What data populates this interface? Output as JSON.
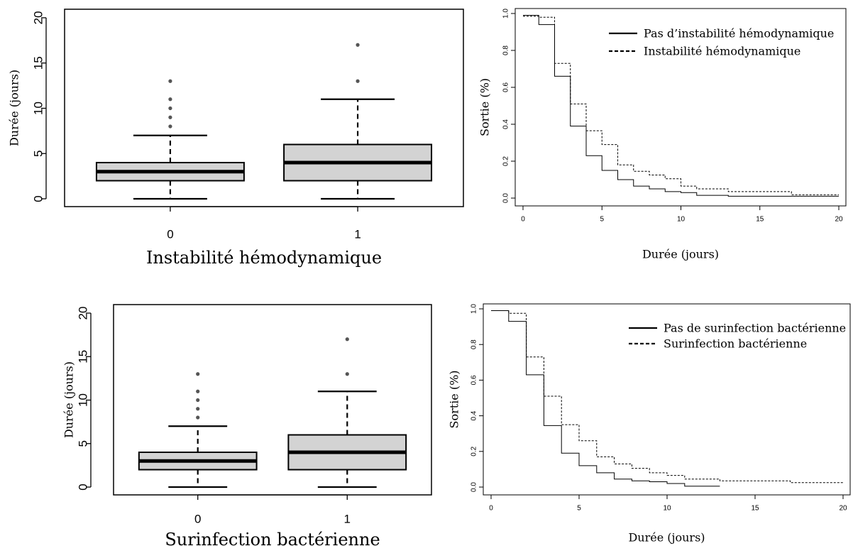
{
  "chart_data": [
    {
      "type": "box",
      "panel": "top-left",
      "xlabel": "Instabilité hémodynamique",
      "ylabel": "Durée (jours)",
      "ylim": [
        0,
        20
      ],
      "yticks": [
        0,
        5,
        10,
        15,
        20
      ],
      "categories": [
        "0",
        "1"
      ],
      "boxes": [
        {
          "category": "0",
          "min": 0,
          "q1": 2,
          "median": 3,
          "q3": 4,
          "max": 7,
          "outliers": [
            8,
            9,
            10,
            11,
            13
          ]
        },
        {
          "category": "1",
          "min": 0,
          "q1": 2,
          "median": 4,
          "q3": 6,
          "max": 11,
          "outliers": [
            13,
            17
          ]
        }
      ]
    },
    {
      "type": "line",
      "step": true,
      "panel": "top-right",
      "xlabel": "Durée (jours)",
      "ylabel": "Sortie (%)",
      "xlim": [
        0,
        20
      ],
      "ylim": [
        0,
        1
      ],
      "xticks": [
        0,
        5,
        10,
        15,
        20
      ],
      "yticks": [
        "0.0",
        "0.2",
        "0.4",
        "0.6",
        "0.8",
        "1.0"
      ],
      "legend_position": "top-right",
      "series": [
        {
          "name": "Pas d’instabilité hémodynamique",
          "style": "solid",
          "x": [
            0,
            1,
            2,
            3,
            4,
            5,
            6,
            7,
            8,
            9,
            10,
            11,
            13,
            20
          ],
          "y": [
            0.99,
            0.94,
            0.66,
            0.39,
            0.23,
            0.15,
            0.1,
            0.065,
            0.05,
            0.035,
            0.03,
            0.015,
            0.01,
            0.01
          ]
        },
        {
          "name": "Instabilité hémodynamique",
          "style": "dashed",
          "x": [
            0,
            1,
            2,
            3,
            4,
            5,
            6,
            7,
            8,
            9,
            10,
            11,
            13,
            17,
            20
          ],
          "y": [
            0.985,
            0.98,
            0.73,
            0.51,
            0.365,
            0.29,
            0.18,
            0.145,
            0.125,
            0.105,
            0.065,
            0.05,
            0.035,
            0.018,
            0.018
          ]
        }
      ]
    },
    {
      "type": "box",
      "panel": "bottom-left",
      "xlabel": "Surinfection bactérienne",
      "ylabel": "Durée (jours)",
      "ylim": [
        0,
        20
      ],
      "yticks": [
        0,
        5,
        10,
        15,
        20
      ],
      "categories": [
        "0",
        "1"
      ],
      "boxes": [
        {
          "category": "0",
          "min": 0,
          "q1": 2,
          "median": 3,
          "q3": 4,
          "max": 7,
          "outliers": [
            8,
            9,
            10,
            11,
            13
          ]
        },
        {
          "category": "1",
          "min": 0,
          "q1": 2,
          "median": 4,
          "q3": 6,
          "max": 11,
          "outliers": [
            13,
            17
          ]
        }
      ]
    },
    {
      "type": "line",
      "step": true,
      "panel": "bottom-right",
      "xlabel": "Durée (jours)",
      "ylabel": "Sortie (%)",
      "xlim": [
        0,
        20
      ],
      "ylim": [
        0,
        1
      ],
      "xticks": [
        0,
        5,
        10,
        15,
        20
      ],
      "yticks": [
        "0.0",
        "0.2",
        "0.4",
        "0.6",
        "0.8",
        "1.0"
      ],
      "legend_position": "top-right",
      "series": [
        {
          "name": "Pas de surinfection bactérienne",
          "style": "solid",
          "x": [
            0,
            1,
            2,
            3,
            4,
            5,
            6,
            7,
            8,
            9,
            10,
            11,
            13
          ],
          "y": [
            0.99,
            0.93,
            0.63,
            0.345,
            0.19,
            0.12,
            0.08,
            0.045,
            0.035,
            0.03,
            0.02,
            0.005,
            0.005
          ]
        },
        {
          "name": "Surinfection bactérienne",
          "style": "dashed",
          "x": [
            0,
            1,
            2,
            3,
            4,
            5,
            6,
            7,
            8,
            9,
            10,
            11,
            13,
            17,
            20
          ],
          "y": [
            0.99,
            0.975,
            0.73,
            0.51,
            0.35,
            0.26,
            0.17,
            0.13,
            0.105,
            0.08,
            0.065,
            0.045,
            0.035,
            0.025,
            0.025
          ]
        }
      ]
    }
  ]
}
